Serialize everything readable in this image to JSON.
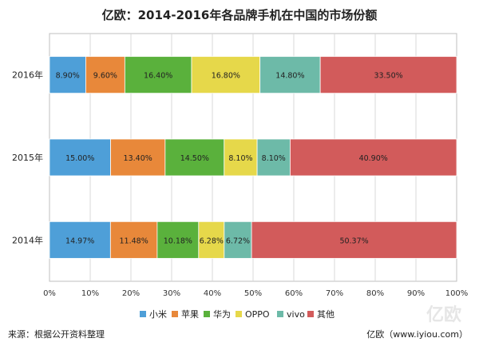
{
  "chart_data": {
    "type": "bar",
    "orientation": "horizontal",
    "stacked": true,
    "title": "亿欧：2014-2016年各品牌手机在中国的市场份额",
    "categories": [
      "2016年",
      "2015年",
      "2014年"
    ],
    "series": [
      {
        "name": "小米",
        "color": "#4e9fd8",
        "values": [
          8.9,
          15.0,
          14.97
        ],
        "labels": [
          "8.90%",
          "15.00%",
          "14.97%"
        ]
      },
      {
        "name": "苹果",
        "color": "#e8883a",
        "values": [
          9.6,
          13.4,
          11.48
        ],
        "labels": [
          "9.60%",
          "13.40%",
          "11.48%"
        ]
      },
      {
        "name": "华为",
        "color": "#5ab13c",
        "values": [
          16.4,
          14.5,
          10.18
        ],
        "labels": [
          "16.40%",
          "14.50%",
          "10.18%"
        ]
      },
      {
        "name": "OPPO",
        "color": "#e6d84a",
        "values": [
          16.8,
          8.1,
          6.28
        ],
        "labels": [
          "16.80%",
          "8.10%",
          "6.28%"
        ]
      },
      {
        "name": "vivo",
        "color": "#6dbaa8",
        "values": [
          14.8,
          8.1,
          6.72
        ],
        "labels": [
          "14.80%",
          "8.10%",
          "6.72%"
        ]
      },
      {
        "name": "其他",
        "color": "#d25b5b",
        "values": [
          33.5,
          40.9,
          50.37
        ],
        "labels": [
          "33.50%",
          "40.90%",
          "50.37%"
        ]
      }
    ],
    "xlim": [
      0,
      100
    ],
    "xticks": [
      "0%",
      "10%",
      "20%",
      "30%",
      "40%",
      "50%",
      "60%",
      "70%",
      "80%",
      "90%",
      "100%"
    ],
    "grid": true,
    "legend_position": "bottom"
  },
  "footer": {
    "source": "来源：根据公开资料整理",
    "credit": "亿欧（www.iyiou.com）"
  },
  "watermark": "亿欧"
}
